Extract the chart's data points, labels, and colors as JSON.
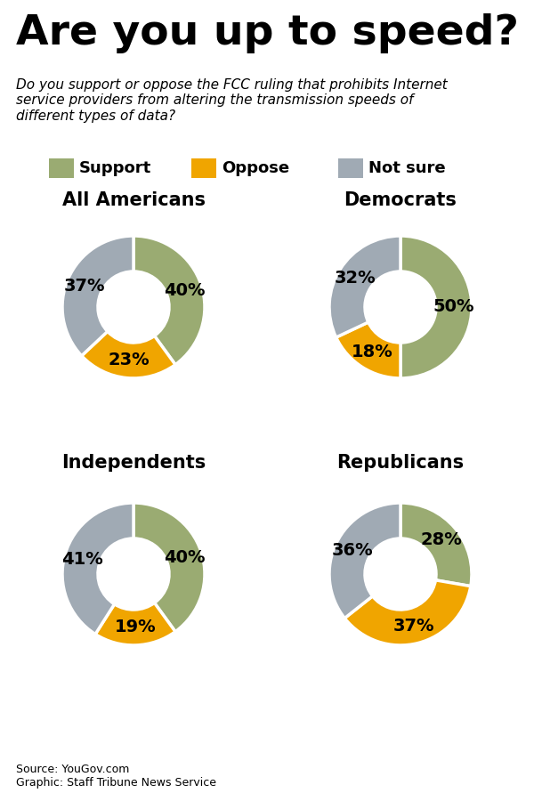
{
  "title": "Are you up to speed?",
  "subtitle": "Do you support or oppose the FCC ruling that prohibits Internet\nservice providers from altering the transmission speeds of\ndifferent types of data?",
  "source": "Source: YouGov.com\nGraphic: Staff Tribune News Service",
  "colors": {
    "support": "#9aab72",
    "oppose": "#f0a500",
    "not_sure": "#a0aab4"
  },
  "legend_labels": [
    "Support",
    "Oppose",
    "Not sure"
  ],
  "charts": [
    {
      "title": "All Americans",
      "values": [
        40,
        23,
        37
      ],
      "labels": [
        "40%",
        "23%",
        "37%"
      ]
    },
    {
      "title": "Democrats",
      "values": [
        50,
        18,
        32
      ],
      "labels": [
        "50%",
        "18%",
        "32%"
      ]
    },
    {
      "title": "Independents",
      "values": [
        40,
        19,
        41
      ],
      "labels": [
        "40%",
        "19%",
        "41%"
      ]
    },
    {
      "title": "Republicans",
      "values": [
        28,
        37,
        36
      ],
      "labels": [
        "28%",
        "37%",
        "36%"
      ]
    }
  ],
  "background_color": "#ffffff",
  "title_fontsize": 34,
  "subtitle_fontsize": 11,
  "chart_title_fontsize": 15,
  "pct_fontsize": 14,
  "legend_fontsize": 13,
  "source_fontsize": 9
}
